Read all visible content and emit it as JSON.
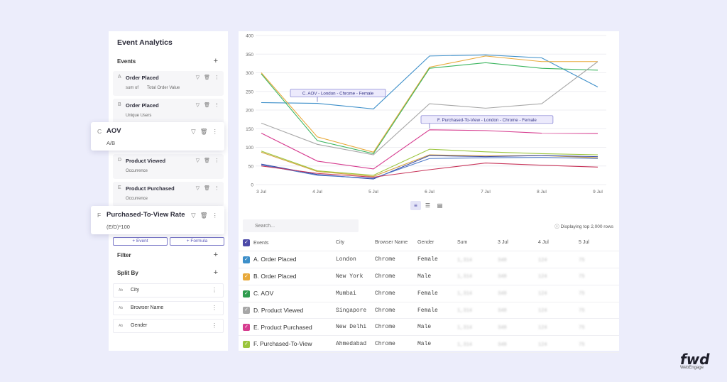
{
  "panel": {
    "title": "Event Analytics",
    "events_label": "Events",
    "events": [
      {
        "letter": "A",
        "name": "Order Placed",
        "agg": "sum of",
        "field": "Total Order Value"
      },
      {
        "letter": "B",
        "name": "Order Placed",
        "agg": "Unique Users",
        "field": ""
      },
      {
        "letter": "C",
        "name": "AOV",
        "agg": "A/B",
        "field": ""
      },
      {
        "letter": "D",
        "name": "Product Viewed",
        "agg": "Occurrence",
        "field": ""
      },
      {
        "letter": "E",
        "name": "Product Purchased",
        "agg": "Occurrence",
        "field": ""
      },
      {
        "letter": "F",
        "name": "Purchased-To-View Rate",
        "agg": "(E/D)*100",
        "field": ""
      }
    ],
    "add_event": "+ Event",
    "add_formula": "+ Formula",
    "filter_label": "Filter",
    "split_by_label": "Split By",
    "split_items": [
      {
        "type": "Ab",
        "name": "City"
      },
      {
        "type": "Ab",
        "name": "Browser Name"
      },
      {
        "type": "Ab",
        "name": "Gender"
      }
    ]
  },
  "chart_data": {
    "type": "line",
    "x": [
      "3 Jul",
      "4 Jul",
      "5 Jul",
      "6 Jul",
      "7 Jul",
      "8 Jul",
      "9 Jul"
    ],
    "ylim": [
      0,
      400
    ],
    "yticks": [
      0,
      50,
      100,
      150,
      200,
      250,
      300,
      350,
      400
    ],
    "grid": true,
    "series": [
      {
        "color": "#3d8fc9",
        "values": [
          220,
          218,
          203,
          345,
          348,
          340,
          262
        ]
      },
      {
        "color": "#e8a93a",
        "values": [
          300,
          128,
          87,
          315,
          345,
          330,
          330
        ]
      },
      {
        "color": "#3cb55f",
        "values": [
          297,
          118,
          83,
          312,
          327,
          312,
          307
        ]
      },
      {
        "color": "#a7a7a7",
        "values": [
          165,
          108,
          80,
          217,
          205,
          217,
          330
        ]
      },
      {
        "color": "#d63c8f",
        "values": [
          138,
          63,
          42,
          147,
          145,
          138,
          137
        ]
      },
      {
        "color": "#9bc53d",
        "values": [
          90,
          37,
          25,
          95,
          88,
          83,
          80
        ]
      },
      {
        "color": "#d4a23c",
        "values": [
          87,
          35,
          22,
          80,
          77,
          78,
          72
        ]
      },
      {
        "color": "#3a4aa8",
        "values": [
          55,
          27,
          15,
          78,
          75,
          78,
          75
        ]
      },
      {
        "color": "#4d78c8",
        "values": [
          53,
          25,
          17,
          70,
          72,
          73,
          70
        ]
      },
      {
        "color": "#c8355a",
        "values": [
          50,
          30,
          20,
          40,
          58,
          52,
          47
        ]
      }
    ],
    "annotations": [
      {
        "text": "C. AOV - London - Chrome - Female",
        "x": "4 Jul",
        "y": 218
      },
      {
        "text": "F. Purchased-To-View - London - Chrome - Female",
        "x": "6 Jul",
        "y": 147
      }
    ]
  },
  "table": {
    "search_placeholder": "Search...",
    "rows_note": "Displaying top 2,000 rows",
    "headers": [
      "Events",
      "City",
      "Browser Name",
      "Gender",
      "Sum",
      "3 Jul",
      "4 Jul",
      "5 Jul"
    ],
    "rows": [
      {
        "event": "A. Order Placed",
        "city": "London",
        "browser": "Chrome",
        "gender": "Female",
        "color": "#3d8fc9"
      },
      {
        "event": "B. Order Placed",
        "city": "New York",
        "browser": "Chrome",
        "gender": "Male",
        "color": "#e8a93a"
      },
      {
        "event": "C. AOV",
        "city": "Mumbai",
        "browser": "Chrome",
        "gender": "Female",
        "color": "#2f9c4e"
      },
      {
        "event": "D. Product Viewed",
        "city": "Singapore",
        "browser": "Chrome",
        "gender": "Female",
        "color": "#a7a7a7"
      },
      {
        "event": "E. Product Purchased",
        "city": "New Delhi",
        "browser": "Chrome",
        "gender": "Male",
        "color": "#d63c8f"
      },
      {
        "event": "F. Purchased-To-View",
        "city": "Ahmedabad",
        "browser": "Chrome",
        "gender": "Male",
        "color": "#9bc53d"
      }
    ]
  },
  "logo": {
    "mark": "fwd",
    "sub": "WebEngage"
  }
}
